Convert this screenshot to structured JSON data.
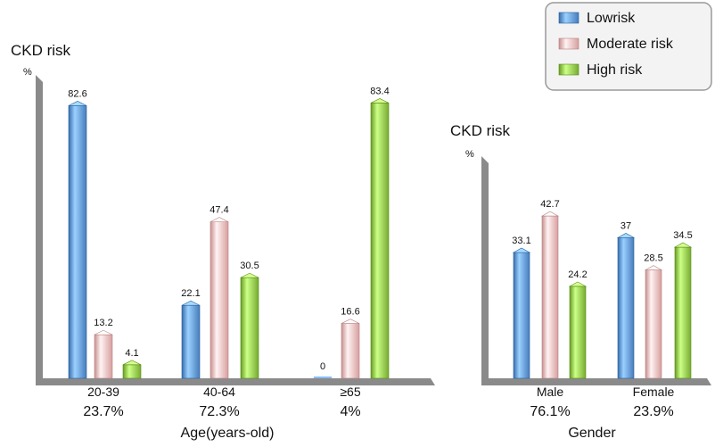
{
  "colors": {
    "lowrisk": "#5f95d4",
    "moderate_risk": "#f0b7b7",
    "high_risk": "#8fc34a",
    "axis": "#8a8a8a",
    "legend_border": "#9a9a9a",
    "legend_bg": "#f3f3f3"
  },
  "legend": {
    "entries": [
      "Lowrisk",
      "Moderate risk",
      "High risk"
    ]
  },
  "chart_data": [
    {
      "type": "bar",
      "title": "CKD risk",
      "ylabel": "%",
      "xlabel": "Age(years-old)",
      "categories": [
        "20-39",
        "40-64",
        "≥65"
      ],
      "category_percentages": [
        "23.7%",
        "72.3%",
        "4%"
      ],
      "ylim": [
        0,
        100
      ],
      "series": [
        {
          "name": "Lowrisk",
          "values": [
            82.6,
            22.1,
            0
          ]
        },
        {
          "name": "Moderate risk",
          "values": [
            13.2,
            47.4,
            16.6
          ]
        },
        {
          "name": "High risk",
          "values": [
            4.1,
            30.5,
            83.4
          ]
        }
      ]
    },
    {
      "type": "bar",
      "title": "CKD risk",
      "ylabel": "%",
      "xlabel": "Gender",
      "categories": [
        "Male",
        "Female"
      ],
      "category_percentages": [
        "76.1%",
        "23.9%"
      ],
      "ylim": [
        0,
        100
      ],
      "series": [
        {
          "name": "Lowrisk",
          "values": [
            33.1,
            37
          ]
        },
        {
          "name": "Moderate risk",
          "values": [
            42.7,
            28.5
          ]
        },
        {
          "name": "High risk",
          "values": [
            24.2,
            34.5
          ]
        }
      ]
    }
  ]
}
